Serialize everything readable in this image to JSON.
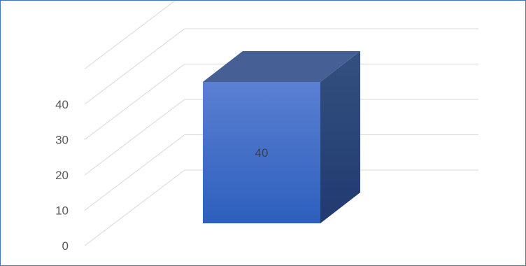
{
  "chart_data": {
    "type": "bar",
    "categories": [
      ""
    ],
    "series": [
      {
        "values": [
          40
        ]
      }
    ],
    "data_labels": [
      "40"
    ],
    "y_ticks": [
      "0",
      "10",
      "20",
      "30",
      "40"
    ],
    "ylim": [
      0,
      40
    ],
    "grid": true,
    "legend": "none",
    "style": "3d-column",
    "colors": {
      "bar_front_top": "#5a80d2",
      "bar_front_bottom": "#2e5fbd",
      "bar_top_face": "#465f95",
      "bar_side_top": "#33507f",
      "bar_side_bottom": "#213a70",
      "gridline": "#d9d9d9",
      "frame_border": "#4472c4"
    }
  }
}
